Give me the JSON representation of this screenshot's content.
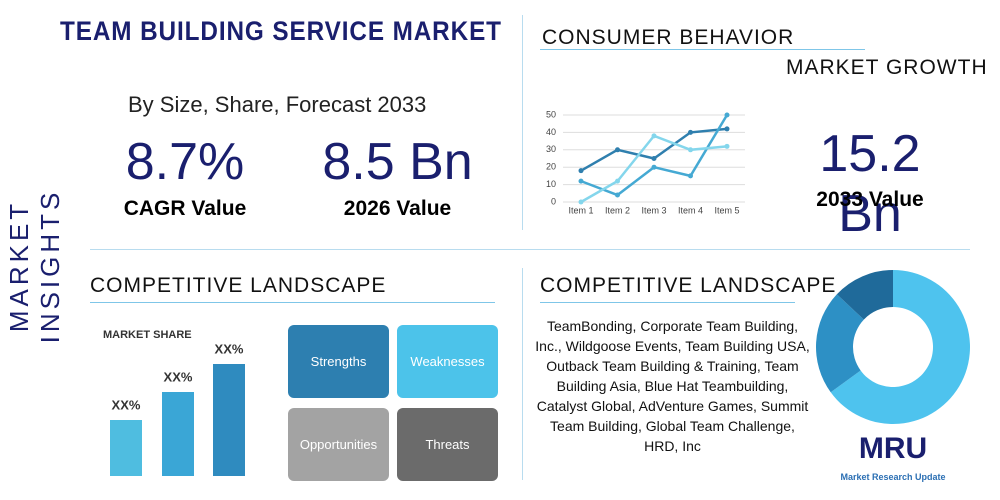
{
  "sidebar": {
    "label": "MARKET INSIGHTS"
  },
  "header": {
    "title": "TEAM BUILDING SERVICE MARKET",
    "subtitle": "By Size, Share, Forecast 2033"
  },
  "stats": [
    {
      "value": "8.7%",
      "label": "CAGR Value"
    },
    {
      "value": "8.5 Bn",
      "label": "2026 Value"
    }
  ],
  "consumer": {
    "title": "CONSUMER BEHAVIOR",
    "subtitle": "MARKET GROWTH",
    "stat_value": "15.2 Bn",
    "stat_label": "2033 Value"
  },
  "competitive_left": {
    "title": "COMPETITIVE LANDSCAPE"
  },
  "swot": [
    "Strengths",
    "Weaknesses",
    "Opportunities",
    "Threats"
  ],
  "competitive_right": {
    "title": "COMPETITIVE LANDSCAPE",
    "text": "TeamBonding, Corporate Team Building, Inc., Wildgoose Events, Team Building USA, Outback Team Building & Training, Team Building Asia, Blue Hat Teambuilding, Catalyst Global, AdVenture Games, Summit Team Building, Global Team Challenge, HRD, Inc"
  },
  "logo": {
    "mark": "MRU",
    "name": "Market Research Update"
  },
  "chart_data": [
    {
      "type": "line",
      "categories": [
        "Item 1",
        "Item 2",
        "Item 3",
        "Item 4",
        "Item 5"
      ],
      "series": [
        {
          "color": "#2f7fae",
          "values": [
            18,
            30,
            25,
            40,
            42
          ]
        },
        {
          "color": "#45a9d3",
          "values": [
            12,
            4,
            20,
            15,
            50
          ]
        },
        {
          "color": "#84d6ec",
          "values": [
            0,
            12,
            38,
            30,
            32
          ]
        }
      ],
      "ylim": [
        0,
        50
      ],
      "yticks": [
        0,
        10,
        20,
        30,
        40,
        50
      ],
      "grid": true
    },
    {
      "type": "bar",
      "title": "MARKET SHARE",
      "values": [
        2,
        3,
        4
      ],
      "value_labels": [
        "XX%",
        "XX%",
        "XX%"
      ],
      "colors": [
        "#4fbde0",
        "#3aa6d6",
        "#2f8bbf"
      ]
    },
    {
      "type": "pie",
      "values": [
        65,
        22,
        13
      ],
      "colors": [
        "#4ec3ee",
        "#2d90c5",
        "#1f6a9a"
      ]
    }
  ]
}
